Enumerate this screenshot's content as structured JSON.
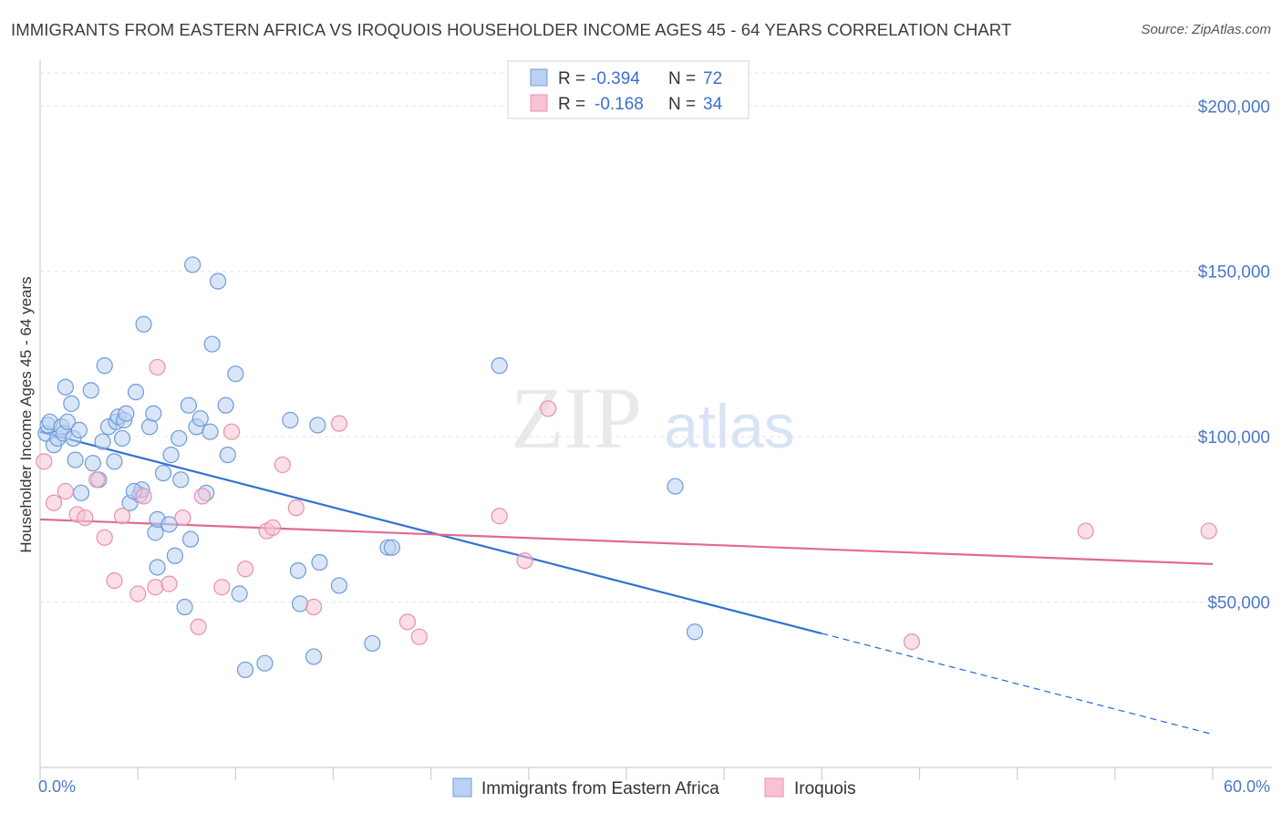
{
  "title": "IMMIGRANTS FROM EASTERN AFRICA VS IROQUOIS HOUSEHOLDER INCOME AGES 45 - 64 YEARS CORRELATION CHART",
  "source": "Source: ZipAtlas.com",
  "watermark": {
    "zip": "ZIP",
    "atlas": "atlas"
  },
  "colors": {
    "blue_fill": "#b9d1f2",
    "blue_stroke": "#6f9ad8",
    "blue_line": "#2f72d1",
    "pink_fill": "#f7c3d3",
    "pink_stroke": "#e890ad",
    "pink_line": "#e06a93",
    "tick_text": "#4a78c8",
    "grid": "#e3e3e3"
  },
  "legend": {
    "rows": [
      {
        "r_label": "R =",
        "r_value": "-0.394",
        "n_label": "N =",
        "n_value": "72"
      },
      {
        "r_label": "R =",
        "r_value": "-0.168",
        "n_label": "N =",
        "n_value": "34"
      }
    ]
  },
  "chart_data": {
    "type": "scatter",
    "xlabel": "",
    "ylabel": "Householder Income Ages 45 - 64 years",
    "xlim": [
      0,
      60
    ],
    "ylim": [
      0,
      210000
    ],
    "x_tick_labels": [
      "0.0%",
      "60.0%"
    ],
    "y_ticks": [
      50000,
      100000,
      150000,
      200000
    ],
    "y_tick_labels": [
      "$50,000",
      "$100,000",
      "$150,000",
      "$200,000"
    ],
    "grid": true,
    "series": [
      {
        "name": "Immigrants from Eastern Africa",
        "color": "#6f9ad8",
        "trend": {
          "x0": 0,
          "y0": 101500,
          "x1": 40,
          "y1": 40500,
          "dash_to_x": 60,
          "dash_to_y": 10000
        },
        "points": [
          [
            0.3,
            101000
          ],
          [
            0.4,
            103500
          ],
          [
            0.5,
            104500
          ],
          [
            0.7,
            97500
          ],
          [
            0.9,
            99500
          ],
          [
            1.1,
            103000
          ],
          [
            1.2,
            101000
          ],
          [
            1.3,
            115000
          ],
          [
            1.4,
            104500
          ],
          [
            1.6,
            110000
          ],
          [
            1.7,
            99500
          ],
          [
            1.8,
            93000
          ],
          [
            2.0,
            102000
          ],
          [
            2.1,
            83000
          ],
          [
            2.6,
            114000
          ],
          [
            2.7,
            92000
          ],
          [
            3.0,
            87000
          ],
          [
            3.2,
            98500
          ],
          [
            3.3,
            121500
          ],
          [
            3.5,
            103000
          ],
          [
            3.8,
            92500
          ],
          [
            3.9,
            104500
          ],
          [
            4.0,
            106000
          ],
          [
            4.2,
            99500
          ],
          [
            4.3,
            105000
          ],
          [
            4.4,
            107000
          ],
          [
            4.6,
            80000
          ],
          [
            4.9,
            113500
          ],
          [
            5.1,
            82500
          ],
          [
            5.2,
            84000
          ],
          [
            5.3,
            134000
          ],
          [
            5.6,
            103000
          ],
          [
            5.8,
            107000
          ],
          [
            5.9,
            71000
          ],
          [
            6.0,
            75000
          ],
          [
            6.3,
            89000
          ],
          [
            6.6,
            73500
          ],
          [
            6.7,
            94500
          ],
          [
            6.9,
            64000
          ],
          [
            7.1,
            99500
          ],
          [
            7.2,
            87000
          ],
          [
            7.4,
            48500
          ],
          [
            7.6,
            109500
          ],
          [
            7.7,
            69000
          ],
          [
            7.8,
            152000
          ],
          [
            8.0,
            103000
          ],
          [
            8.2,
            105500
          ],
          [
            8.5,
            83000
          ],
          [
            8.7,
            101500
          ],
          [
            8.8,
            128000
          ],
          [
            9.1,
            147000
          ],
          [
            9.5,
            109500
          ],
          [
            9.6,
            94500
          ],
          [
            10.0,
            119000
          ],
          [
            10.2,
            52500
          ],
          [
            10.5,
            29500
          ],
          [
            11.5,
            31500
          ],
          [
            12.8,
            105000
          ],
          [
            13.2,
            59500
          ],
          [
            13.3,
            49500
          ],
          [
            14.0,
            33500
          ],
          [
            14.2,
            103500
          ],
          [
            14.3,
            62000
          ],
          [
            15.3,
            55000
          ],
          [
            17.0,
            37500
          ],
          [
            17.8,
            66500
          ],
          [
            18.0,
            66500
          ],
          [
            23.5,
            121500
          ],
          [
            32.5,
            85000
          ],
          [
            33.5,
            41000
          ],
          [
            4.8,
            83500
          ],
          [
            6.0,
            60500
          ]
        ]
      },
      {
        "name": "Iroquois",
        "color": "#e890ad",
        "trend": {
          "x0": 0,
          "y0": 75000,
          "x1": 60,
          "y1": 61500
        },
        "points": [
          [
            0.2,
            92500
          ],
          [
            0.7,
            80000
          ],
          [
            1.3,
            83500
          ],
          [
            1.9,
            76500
          ],
          [
            2.3,
            75500
          ],
          [
            2.9,
            87000
          ],
          [
            3.3,
            69500
          ],
          [
            3.8,
            56500
          ],
          [
            4.2,
            76000
          ],
          [
            5.0,
            52500
          ],
          [
            5.3,
            82000
          ],
          [
            5.9,
            54500
          ],
          [
            6.0,
            121000
          ],
          [
            6.6,
            55500
          ],
          [
            7.3,
            75500
          ],
          [
            8.1,
            42500
          ],
          [
            8.3,
            82000
          ],
          [
            9.3,
            54500
          ],
          [
            9.8,
            101500
          ],
          [
            10.5,
            60000
          ],
          [
            11.6,
            71500
          ],
          [
            11.9,
            72500
          ],
          [
            12.4,
            91500
          ],
          [
            13.1,
            78500
          ],
          [
            14.0,
            48500
          ],
          [
            15.3,
            104000
          ],
          [
            18.8,
            44000
          ],
          [
            19.4,
            39500
          ],
          [
            23.5,
            76000
          ],
          [
            24.8,
            62500
          ],
          [
            26.0,
            108500
          ],
          [
            44.6,
            38000
          ],
          [
            53.5,
            71500
          ],
          [
            59.8,
            71500
          ]
        ]
      }
    ]
  },
  "bottom_legend": [
    {
      "label": "Immigrants from Eastern Africa",
      "color_key": "blue"
    },
    {
      "label": "Iroquois",
      "color_key": "pink"
    }
  ]
}
